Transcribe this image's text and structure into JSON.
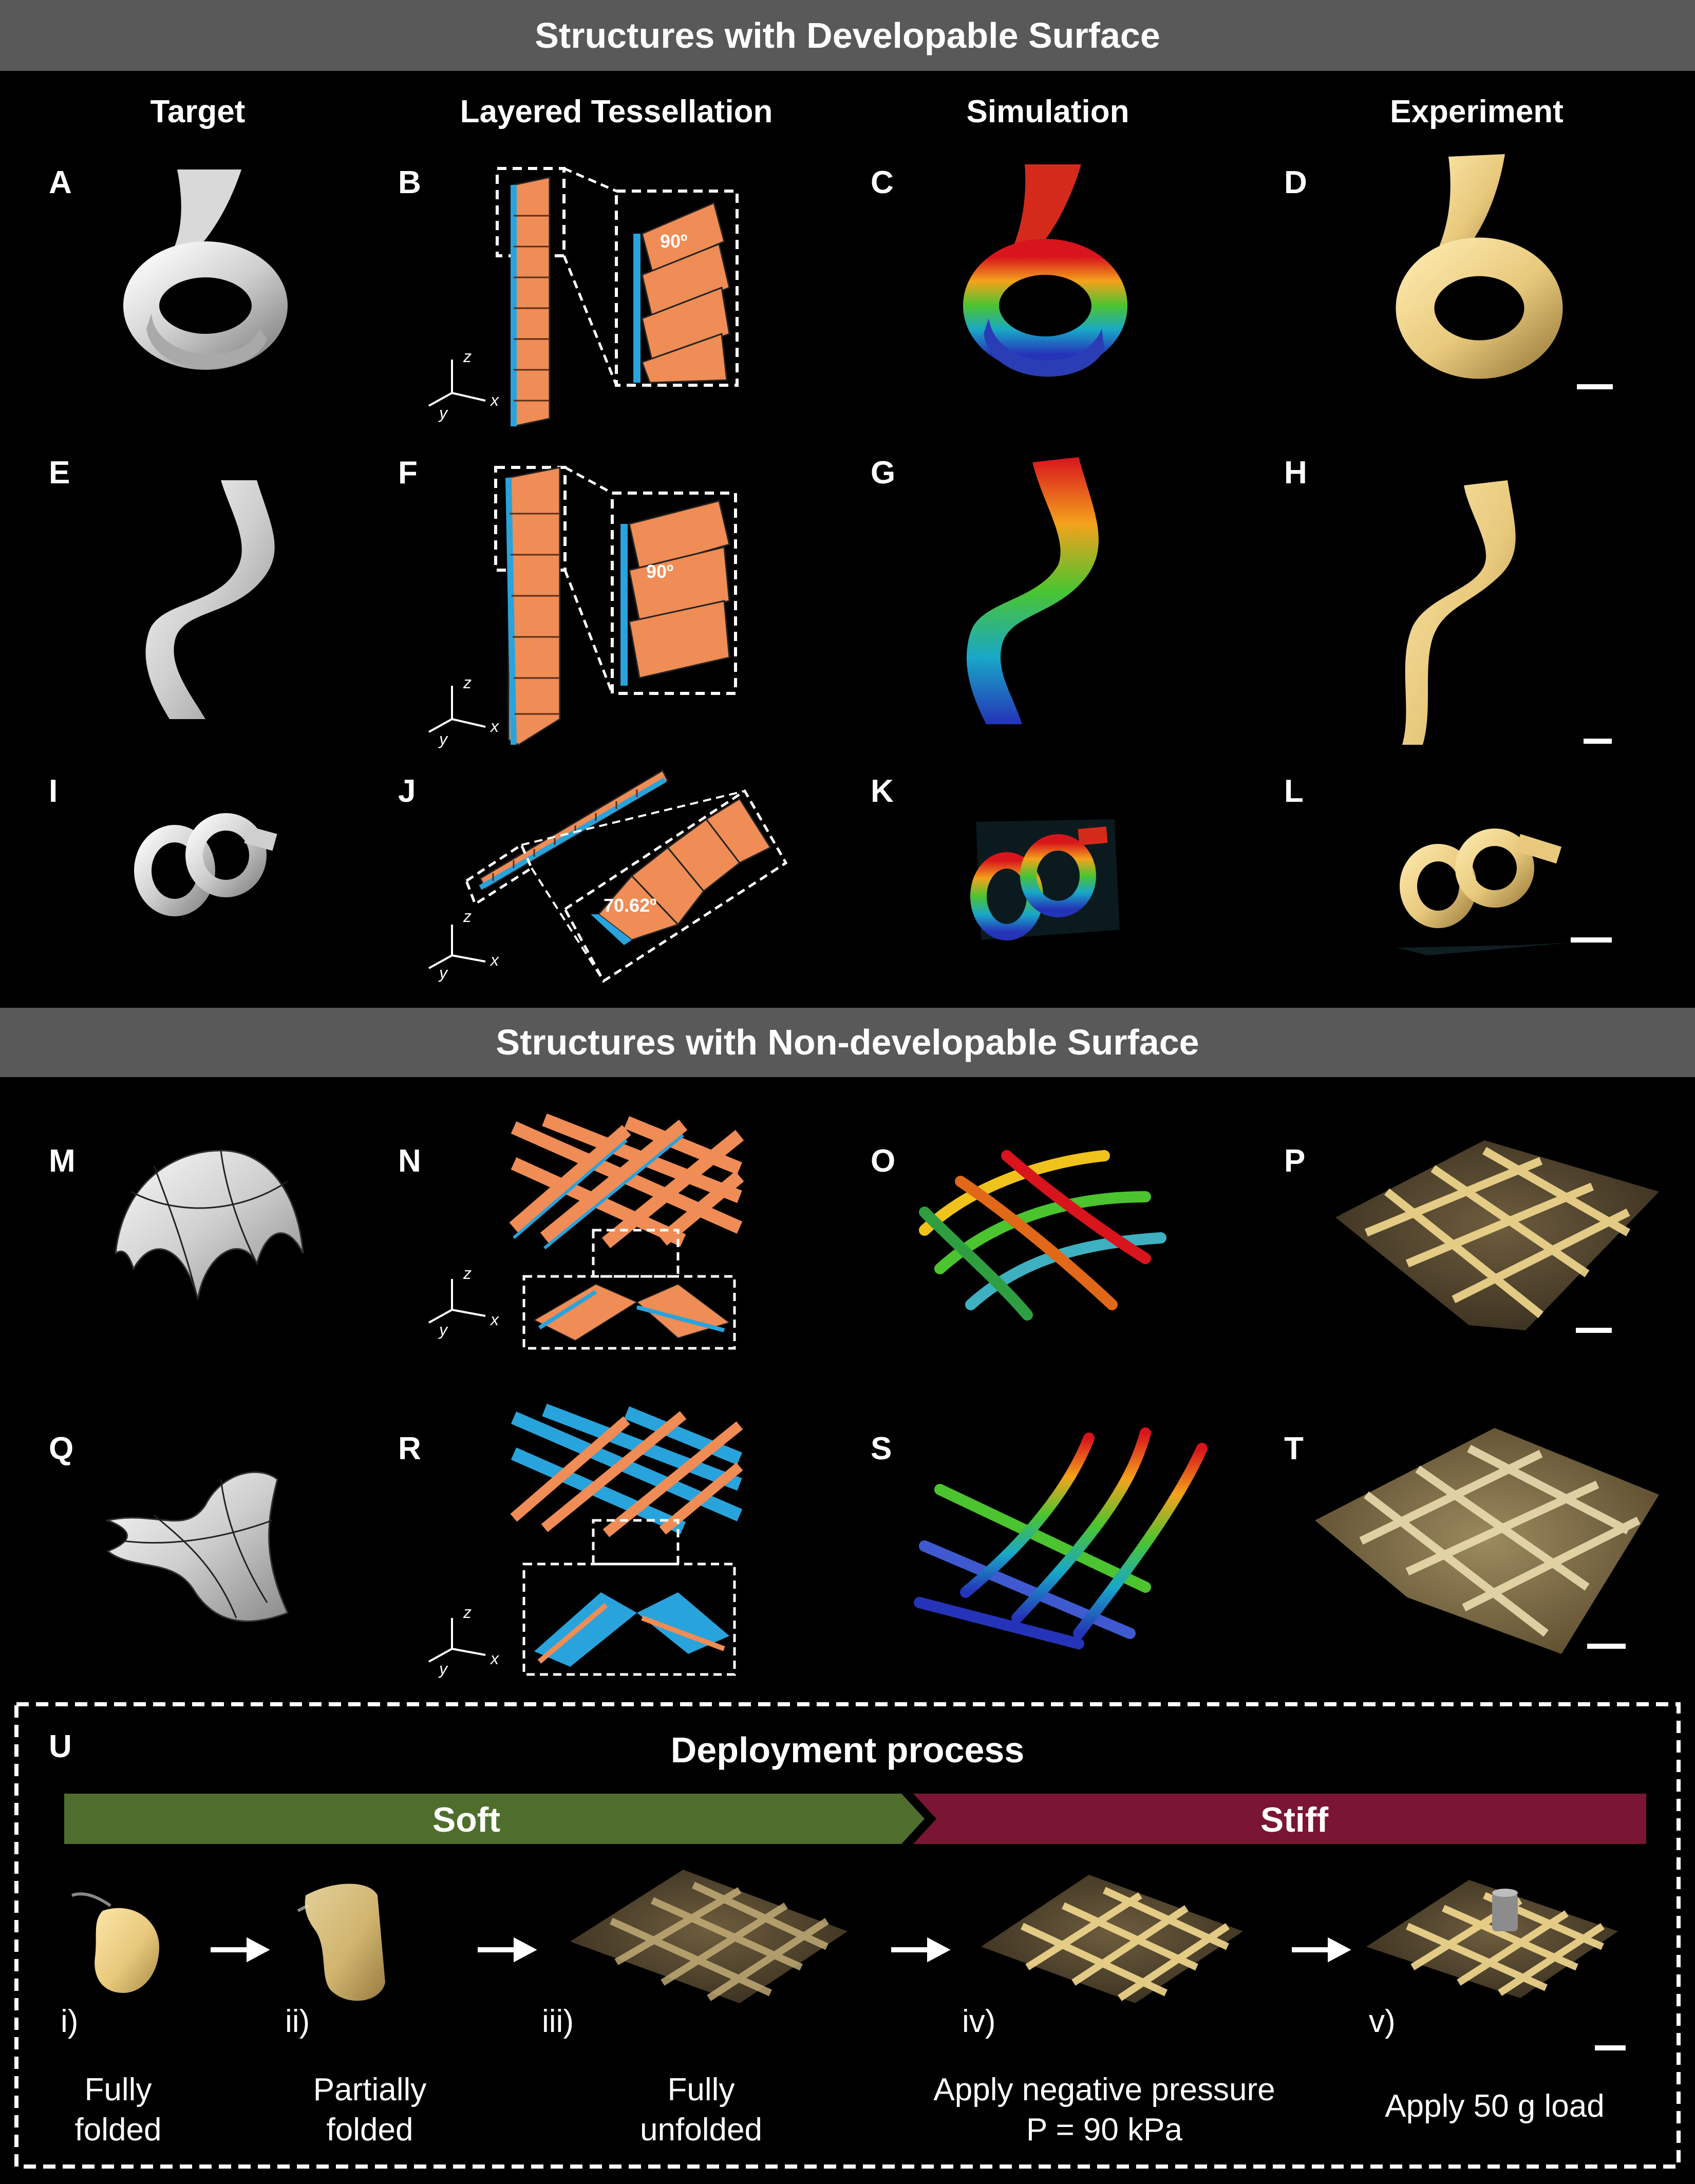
{
  "sections": {
    "developable": "Structures with Developable Surface",
    "nondevelopable": "Structures with Non-developable Surface"
  },
  "columns": [
    "Target",
    "Layered Tessellation",
    "Simulation",
    "Experiment"
  ],
  "panel_labels": [
    "A",
    "B",
    "C",
    "D",
    "E",
    "F",
    "G",
    "H",
    "I",
    "J",
    "K",
    "L",
    "M",
    "N",
    "O",
    "P",
    "Q",
    "R",
    "S",
    "T",
    "U"
  ],
  "angles": {
    "b": "90º",
    "f": "90º",
    "j": "70.62º"
  },
  "axes": {
    "z": "z",
    "y": "y",
    "x": "x"
  },
  "deployment": {
    "title": "Deployment process",
    "soft": "Soft",
    "stiff": "Stiff",
    "steps": [
      {
        "roman": "i)",
        "line1": "Fully",
        "line2": "folded"
      },
      {
        "roman": "ii)",
        "line1": "Partially",
        "line2": "folded"
      },
      {
        "roman": "iii)",
        "line1": "Fully",
        "line2": "unfolded"
      },
      {
        "roman": "iv)",
        "line1": "Apply negative pressure",
        "line2": "P = 90 kPa"
      },
      {
        "roman": "v)",
        "line1": "Apply 50 g load",
        "line2": ""
      }
    ]
  },
  "colors": {
    "banner": "#595959",
    "soft": "#4f6e2e",
    "stiff": "#7a1634",
    "tile": "#f08c55",
    "tile_edge": "#29a3dc"
  }
}
